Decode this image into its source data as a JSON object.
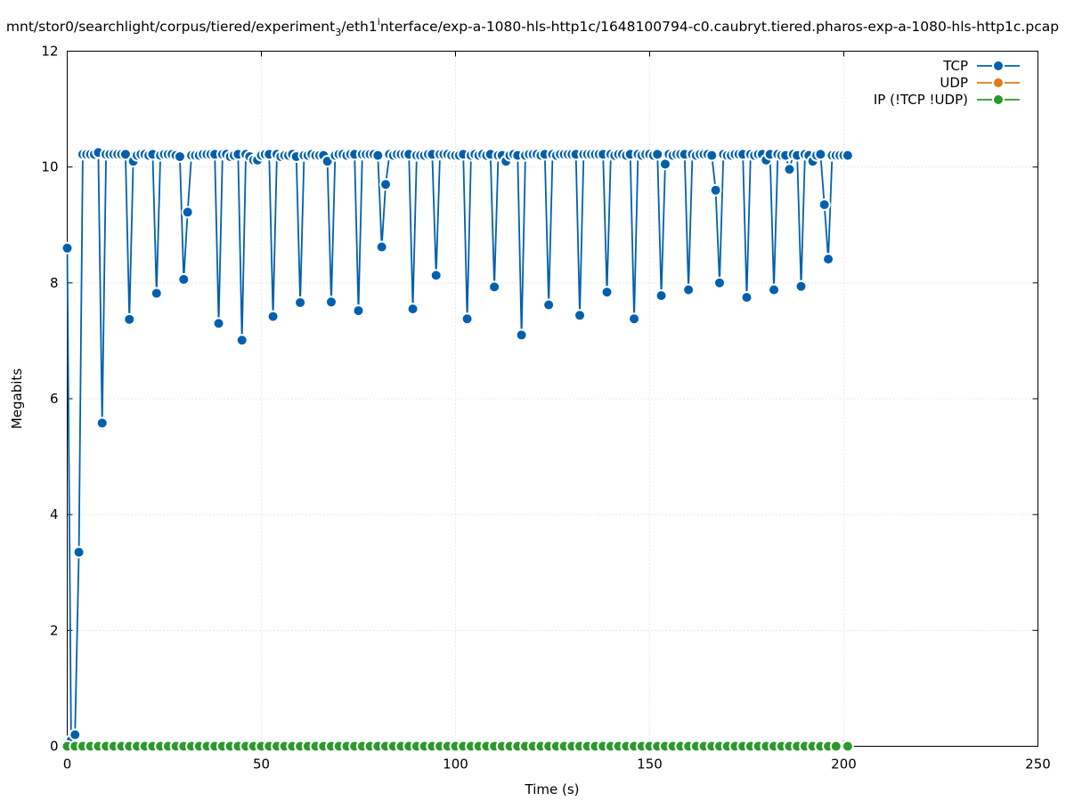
{
  "chart_data": {
    "type": "line",
    "title_prefix": "mnt/stor0/searchlight/corpus/tiered/experiment",
    "title_sub1": "3",
    "title_mid": "/eth1",
    "title_sub2": "i",
    "title_suffix": "nterface/exp-a-1080-hls-http1c/1648100794-c0.caubryt.tiered.pharos-exp-a-1080-hls-http1c.pcap",
    "xlabel": "Time (s)",
    "ylabel": "Megabits",
    "xlim": [
      0,
      250
    ],
    "ylim": [
      0,
      12
    ],
    "xticks": [
      "0",
      "50",
      "100",
      "150",
      "200",
      "250"
    ],
    "yticks": [
      "0",
      "2",
      "4",
      "6",
      "8",
      "10",
      "12"
    ],
    "grid": true,
    "legend_position": "top-right",
    "series": [
      {
        "name": "TCP",
        "color": "#0060ad",
        "points": [
          [
            0,
            8.6
          ],
          [
            1,
            0.1
          ],
          [
            2,
            0.2
          ],
          [
            3,
            3.35
          ],
          [
            4,
            10.22
          ],
          [
            5,
            10.22
          ],
          [
            6,
            10.22
          ],
          [
            7,
            10.22
          ],
          [
            8,
            10.25
          ],
          [
            9,
            5.58
          ],
          [
            10,
            10.22
          ],
          [
            11,
            10.22
          ],
          [
            12,
            10.22
          ],
          [
            13,
            10.22
          ],
          [
            14,
            10.22
          ],
          [
            15,
            10.22
          ],
          [
            16,
            7.37
          ],
          [
            17,
            10.1
          ],
          [
            18,
            10.2
          ],
          [
            19,
            10.22
          ],
          [
            20,
            10.22
          ],
          [
            21,
            10.2
          ],
          [
            22,
            10.22
          ],
          [
            23,
            7.82
          ],
          [
            24,
            10.2
          ],
          [
            25,
            10.22
          ],
          [
            26,
            10.22
          ],
          [
            27,
            10.22
          ],
          [
            28,
            10.2
          ],
          [
            29,
            10.18
          ],
          [
            30,
            8.06
          ],
          [
            31,
            9.22
          ],
          [
            32,
            10.2
          ],
          [
            33,
            10.2
          ],
          [
            34,
            10.2
          ],
          [
            35,
            10.22
          ],
          [
            36,
            10.22
          ],
          [
            37,
            10.22
          ],
          [
            38,
            10.22
          ],
          [
            39,
            7.3
          ],
          [
            40,
            10.22
          ],
          [
            41,
            10.22
          ],
          [
            42,
            10.18
          ],
          [
            43,
            10.2
          ],
          [
            44,
            10.22
          ],
          [
            45,
            7.01
          ],
          [
            46,
            10.22
          ],
          [
            47,
            10.18
          ],
          [
            48,
            10.12
          ],
          [
            49,
            10.12
          ],
          [
            50,
            10.2
          ],
          [
            51,
            10.22
          ],
          [
            52,
            10.22
          ],
          [
            53,
            7.42
          ],
          [
            54,
            10.22
          ],
          [
            55,
            10.18
          ],
          [
            56,
            10.2
          ],
          [
            57,
            10.2
          ],
          [
            58,
            10.22
          ],
          [
            59,
            10.18
          ],
          [
            60,
            7.66
          ],
          [
            61,
            10.2
          ],
          [
            62,
            10.2
          ],
          [
            63,
            10.22
          ],
          [
            64,
            10.2
          ],
          [
            65,
            10.2
          ],
          [
            66,
            10.2
          ],
          [
            67,
            10.1
          ],
          [
            68,
            7.67
          ],
          [
            69,
            10.2
          ],
          [
            70,
            10.22
          ],
          [
            71,
            10.22
          ],
          [
            72,
            10.2
          ],
          [
            73,
            10.22
          ],
          [
            74,
            10.22
          ],
          [
            75,
            7.52
          ],
          [
            76,
            10.22
          ],
          [
            77,
            10.22
          ],
          [
            78,
            10.22
          ],
          [
            79,
            10.22
          ],
          [
            80,
            10.2
          ],
          [
            81,
            8.62
          ],
          [
            82,
            9.7
          ],
          [
            83,
            10.22
          ],
          [
            84,
            10.2
          ],
          [
            85,
            10.22
          ],
          [
            86,
            10.22
          ],
          [
            87,
            10.22
          ],
          [
            88,
            10.22
          ],
          [
            89,
            7.55
          ],
          [
            90,
            10.2
          ],
          [
            91,
            10.2
          ],
          [
            92,
            10.2
          ],
          [
            93,
            10.22
          ],
          [
            94,
            10.22
          ],
          [
            95,
            8.13
          ],
          [
            96,
            10.22
          ],
          [
            97,
            10.22
          ],
          [
            98,
            10.22
          ],
          [
            99,
            10.2
          ],
          [
            100,
            10.2
          ],
          [
            101,
            10.2
          ],
          [
            102,
            10.22
          ],
          [
            103,
            7.38
          ],
          [
            104,
            10.2
          ],
          [
            105,
            10.22
          ],
          [
            106,
            10.2
          ],
          [
            107,
            10.22
          ],
          [
            108,
            10.2
          ],
          [
            109,
            10.22
          ],
          [
            110,
            7.93
          ],
          [
            111,
            10.2
          ],
          [
            112,
            10.2
          ],
          [
            113,
            10.1
          ],
          [
            114,
            10.2
          ],
          [
            115,
            10.22
          ],
          [
            116,
            10.2
          ],
          [
            117,
            7.1
          ],
          [
            118,
            10.2
          ],
          [
            119,
            10.22
          ],
          [
            120,
            10.22
          ],
          [
            121,
            10.22
          ],
          [
            122,
            10.2
          ],
          [
            123,
            10.22
          ],
          [
            124,
            7.62
          ],
          [
            125,
            10.22
          ],
          [
            126,
            10.2
          ],
          [
            127,
            10.22
          ],
          [
            128,
            10.22
          ],
          [
            129,
            10.22
          ],
          [
            130,
            10.22
          ],
          [
            131,
            10.22
          ],
          [
            132,
            7.44
          ],
          [
            133,
            10.22
          ],
          [
            134,
            10.22
          ],
          [
            135,
            10.22
          ],
          [
            136,
            10.22
          ],
          [
            137,
            10.22
          ],
          [
            138,
            10.22
          ],
          [
            139,
            7.84
          ],
          [
            140,
            10.22
          ],
          [
            141,
            10.2
          ],
          [
            142,
            10.22
          ],
          [
            143,
            10.22
          ],
          [
            144,
            10.2
          ],
          [
            145,
            10.22
          ],
          [
            146,
            7.38
          ],
          [
            147,
            10.22
          ],
          [
            148,
            10.2
          ],
          [
            149,
            10.22
          ],
          [
            150,
            10.22
          ],
          [
            151,
            10.2
          ],
          [
            152,
            10.22
          ],
          [
            153,
            7.78
          ],
          [
            154,
            10.05
          ],
          [
            155,
            10.22
          ],
          [
            156,
            10.2
          ],
          [
            157,
            10.22
          ],
          [
            158,
            10.22
          ],
          [
            159,
            10.22
          ],
          [
            160,
            7.88
          ],
          [
            161,
            10.22
          ],
          [
            162,
            10.2
          ],
          [
            163,
            10.22
          ],
          [
            164,
            10.22
          ],
          [
            165,
            10.22
          ],
          [
            166,
            10.2
          ],
          [
            167,
            9.6
          ],
          [
            168,
            8.0
          ],
          [
            169,
            10.22
          ],
          [
            170,
            10.2
          ],
          [
            171,
            10.2
          ],
          [
            172,
            10.22
          ],
          [
            173,
            10.22
          ],
          [
            174,
            10.22
          ],
          [
            175,
            7.75
          ],
          [
            176,
            10.22
          ],
          [
            177,
            10.2
          ],
          [
            178,
            10.22
          ],
          [
            179,
            10.22
          ],
          [
            180,
            10.12
          ],
          [
            181,
            10.22
          ],
          [
            182,
            7.88
          ],
          [
            183,
            10.22
          ],
          [
            184,
            10.2
          ],
          [
            185,
            10.2
          ],
          [
            186,
            9.96
          ],
          [
            187,
            10.22
          ],
          [
            188,
            10.2
          ],
          [
            189,
            7.94
          ],
          [
            190,
            10.22
          ],
          [
            191,
            10.2
          ],
          [
            192,
            10.1
          ],
          [
            193,
            10.2
          ],
          [
            194,
            10.22
          ],
          [
            195,
            9.35
          ],
          [
            196,
            8.41
          ],
          [
            197,
            10.2
          ],
          [
            198,
            10.2
          ],
          [
            199,
            10.2
          ],
          [
            200,
            10.2
          ],
          [
            201,
            10.2
          ]
        ]
      },
      {
        "name": "UDP",
        "color": "#e07c14",
        "points": []
      },
      {
        "name": "IP (!TCP  !UDP)",
        "color": "#2a9a2a",
        "points": [
          [
            0,
            0
          ],
          [
            2,
            0
          ],
          [
            4,
            0
          ],
          [
            6,
            0
          ],
          [
            8,
            0
          ],
          [
            10,
            0
          ],
          [
            12,
            0
          ],
          [
            14,
            0
          ],
          [
            16,
            0
          ],
          [
            18,
            0
          ],
          [
            20,
            0
          ],
          [
            22,
            0
          ],
          [
            24,
            0
          ],
          [
            26,
            0
          ],
          [
            28,
            0
          ],
          [
            30,
            0
          ],
          [
            32,
            0
          ],
          [
            34,
            0
          ],
          [
            36,
            0
          ],
          [
            38,
            0
          ],
          [
            40,
            0
          ],
          [
            42,
            0
          ],
          [
            44,
            0
          ],
          [
            46,
            0
          ],
          [
            48,
            0
          ],
          [
            50,
            0
          ],
          [
            52,
            0
          ],
          [
            54,
            0
          ],
          [
            56,
            0
          ],
          [
            58,
            0
          ],
          [
            60,
            0
          ],
          [
            62,
            0
          ],
          [
            64,
            0
          ],
          [
            66,
            0
          ],
          [
            68,
            0
          ],
          [
            70,
            0
          ],
          [
            72,
            0
          ],
          [
            74,
            0
          ],
          [
            76,
            0
          ],
          [
            78,
            0
          ],
          [
            80,
            0
          ],
          [
            82,
            0
          ],
          [
            84,
            0
          ],
          [
            86,
            0
          ],
          [
            88,
            0
          ],
          [
            90,
            0
          ],
          [
            92,
            0
          ],
          [
            94,
            0
          ],
          [
            96,
            0
          ],
          [
            98,
            0
          ],
          [
            100,
            0
          ],
          [
            102,
            0
          ],
          [
            104,
            0
          ],
          [
            106,
            0
          ],
          [
            108,
            0
          ],
          [
            110,
            0
          ],
          [
            112,
            0
          ],
          [
            114,
            0
          ],
          [
            116,
            0
          ],
          [
            118,
            0
          ],
          [
            120,
            0
          ],
          [
            122,
            0
          ],
          [
            124,
            0
          ],
          [
            126,
            0
          ],
          [
            128,
            0
          ],
          [
            130,
            0
          ],
          [
            132,
            0
          ],
          [
            134,
            0
          ],
          [
            136,
            0
          ],
          [
            138,
            0
          ],
          [
            140,
            0
          ],
          [
            142,
            0
          ],
          [
            144,
            0
          ],
          [
            146,
            0
          ],
          [
            148,
            0
          ],
          [
            150,
            0
          ],
          [
            152,
            0
          ],
          [
            154,
            0
          ],
          [
            156,
            0
          ],
          [
            158,
            0
          ],
          [
            160,
            0
          ],
          [
            162,
            0
          ],
          [
            164,
            0
          ],
          [
            166,
            0
          ],
          [
            168,
            0
          ],
          [
            170,
            0
          ],
          [
            172,
            0
          ],
          [
            174,
            0
          ],
          [
            176,
            0
          ],
          [
            178,
            0
          ],
          [
            180,
            0
          ],
          [
            182,
            0
          ],
          [
            184,
            0
          ],
          [
            186,
            0
          ],
          [
            188,
            0
          ],
          [
            190,
            0
          ],
          [
            192,
            0
          ],
          [
            194,
            0
          ],
          [
            196,
            0
          ],
          [
            198,
            0
          ],
          [
            201,
            0
          ]
        ]
      }
    ]
  }
}
